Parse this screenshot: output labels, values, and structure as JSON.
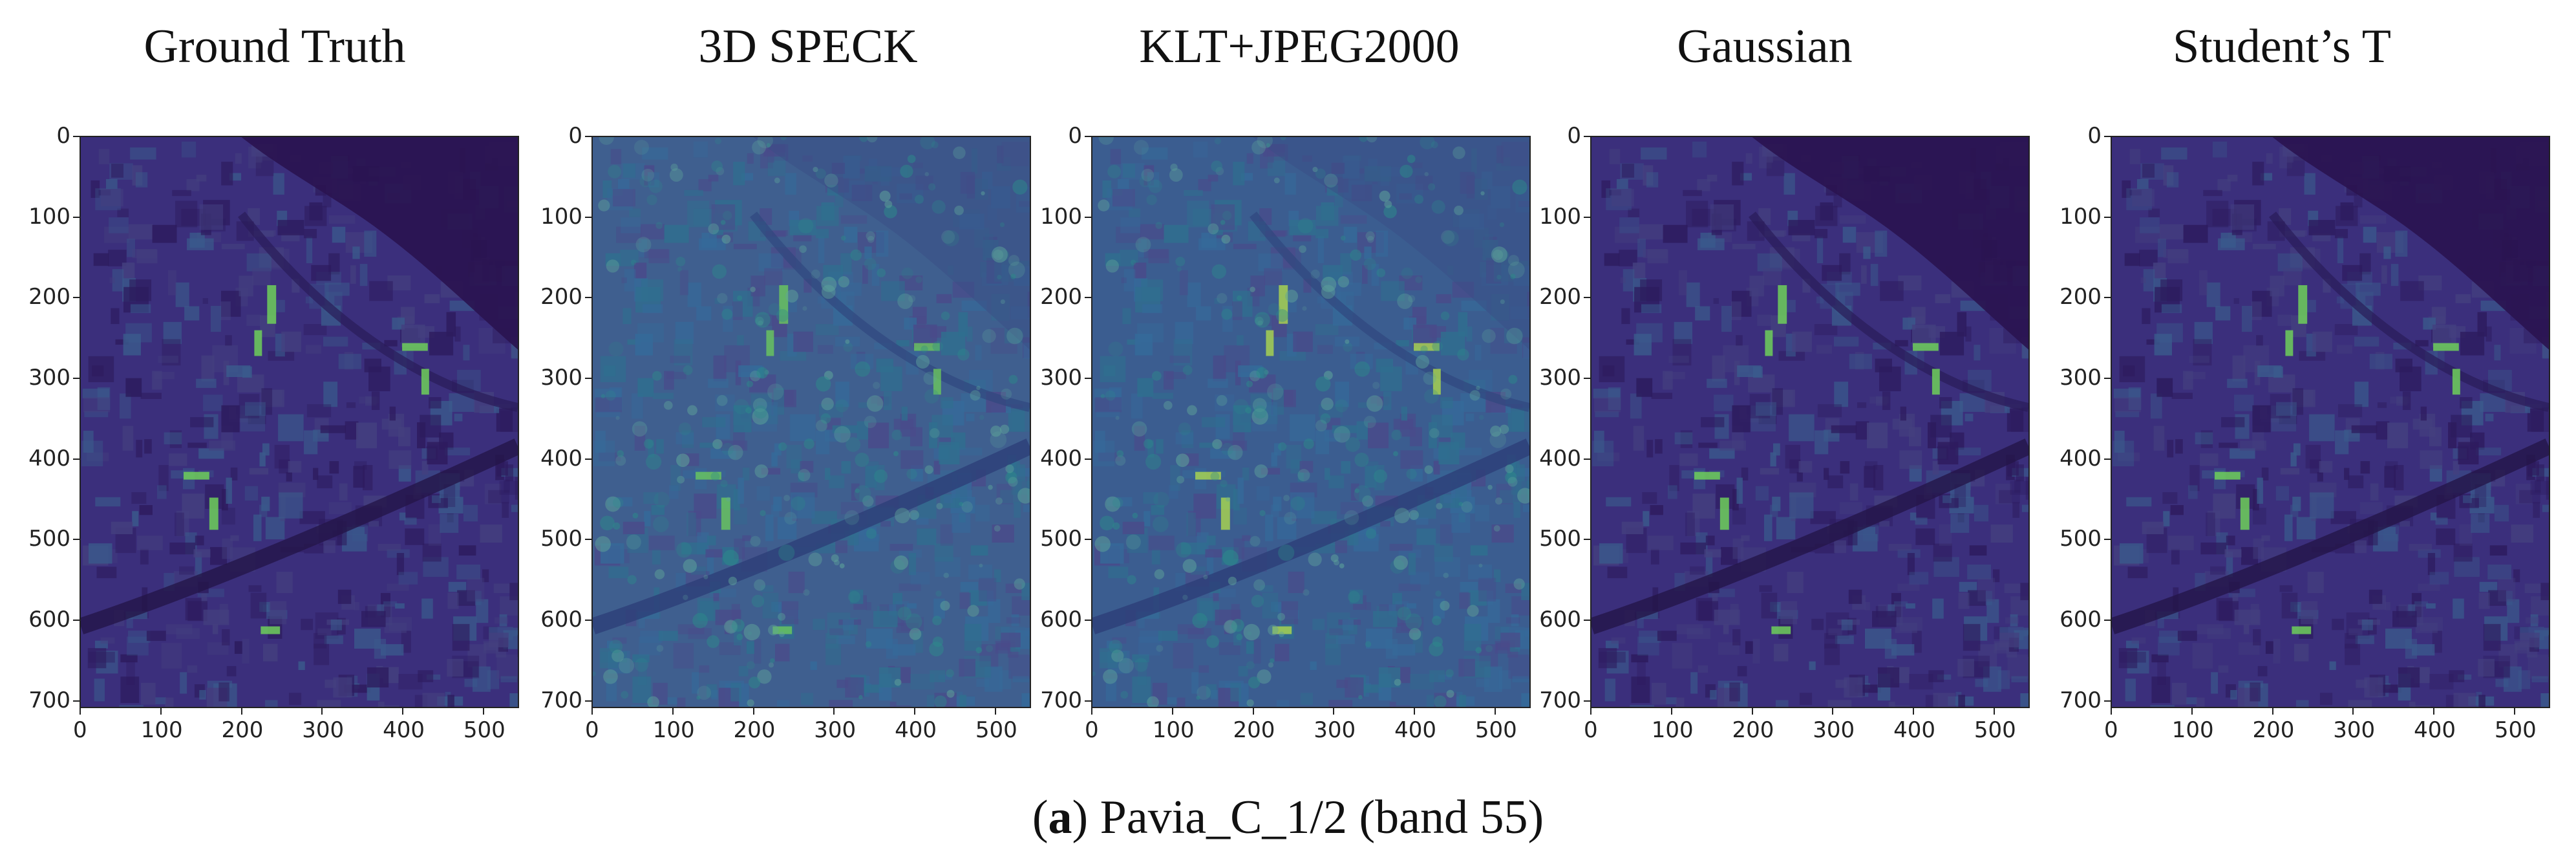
{
  "panels": [
    {
      "title": "Ground Truth",
      "style": "gt"
    },
    {
      "title": "3D SPECK",
      "style": "speck"
    },
    {
      "title": "KLT+JPEG2000",
      "style": "klt"
    },
    {
      "title": "Gaussian",
      "style": "gauss"
    },
    {
      "title": "Student’s T",
      "style": "student"
    }
  ],
  "axes": {
    "y_ticks": [
      "0",
      "100",
      "200",
      "300",
      "400",
      "500",
      "600",
      "700"
    ],
    "x_ticks": [
      "0",
      "100",
      "200",
      "300",
      "400",
      "500"
    ]
  },
  "caption": {
    "prefix": "(",
    "label": "a",
    "suffix": ") Pavia_C_1/2 (band 55)"
  },
  "colors": {
    "dark": "#2d1b5e",
    "deep": "#3b2f7c",
    "mid": "#3a5a8c",
    "teal": "#2c8a8a",
    "green": "#6fcf5a",
    "river": "#2a1450"
  }
}
